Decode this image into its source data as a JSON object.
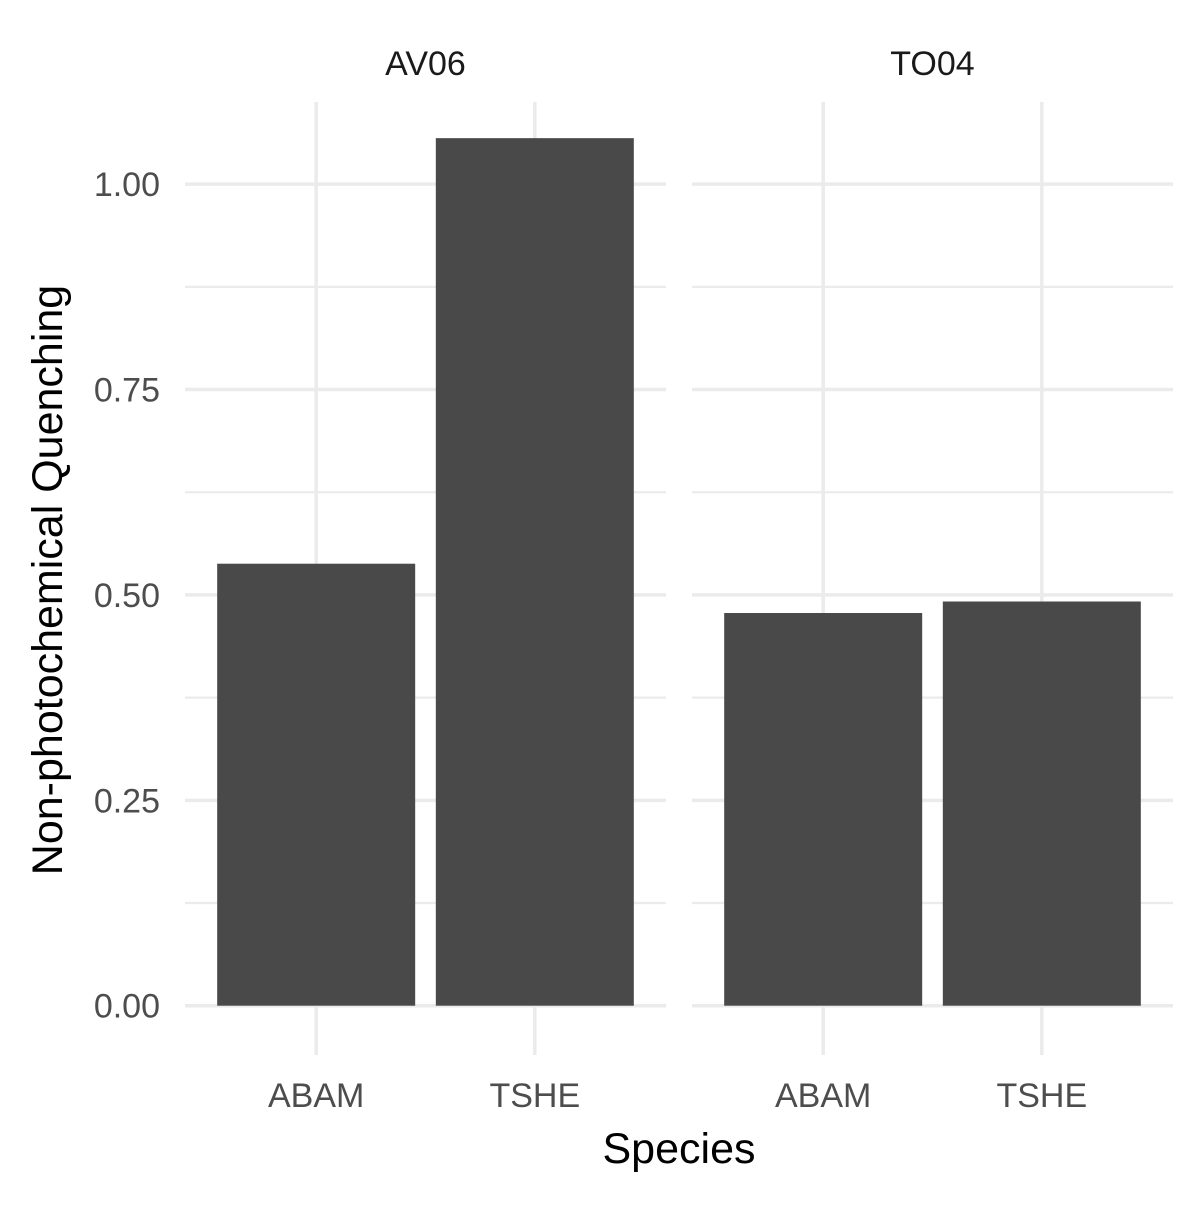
{
  "chart_data": {
    "type": "bar",
    "facet_by": "site",
    "xlabel": "Species",
    "ylabel": "Non-photochemical Quenching",
    "ylim": [
      -0.06,
      1.1
    ],
    "y_ticks": [
      0.0,
      0.25,
      0.5,
      0.75,
      1.0
    ],
    "y_tick_labels": [
      "0.00",
      "0.25",
      "0.50",
      "0.75",
      "1.00"
    ],
    "y_minor_ticks": [
      0.125,
      0.375,
      0.625,
      0.875
    ],
    "grid": true,
    "bar_color": "#494949",
    "grid_color": "#ebebeb",
    "background": "#ffffff",
    "facets": [
      {
        "name": "AV06",
        "categories": [
          "ABAM",
          "TSHE"
        ],
        "values": [
          0.538,
          1.056
        ]
      },
      {
        "name": "TO04",
        "categories": [
          "ABAM",
          "TSHE"
        ],
        "values": [
          0.478,
          0.492
        ]
      }
    ]
  }
}
